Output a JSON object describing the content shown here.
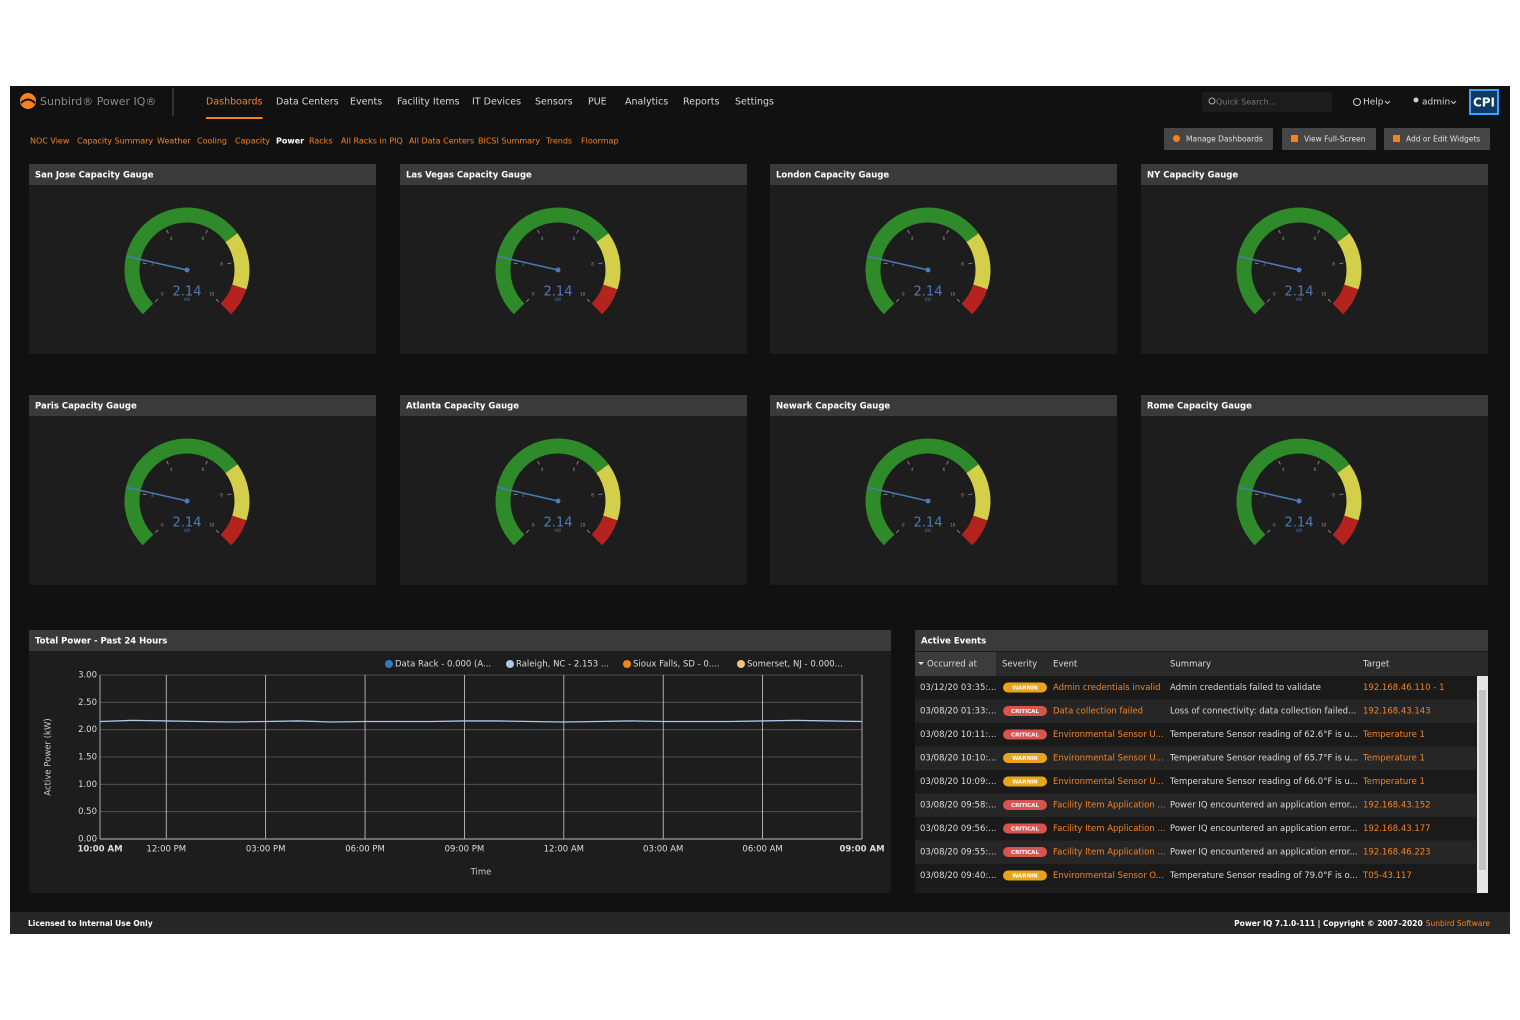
{
  "nav": {
    "logo": "Sunbird® Power IQ®",
    "items": [
      "Dashboards",
      "Data Centers",
      "Events",
      "Facility Items",
      "IT Devices",
      "Sensors",
      "PUE",
      "Analytics",
      "Reports",
      "Settings"
    ],
    "active": 0,
    "search_placeholder": "Quick Search...",
    "help": "Help",
    "user": "admin",
    "logo_right": "CPI"
  },
  "subnav": {
    "items": [
      "NOC View",
      "Capacity Summary",
      "Weather",
      "Cooling",
      "Capacity",
      "Power",
      "Racks",
      "All Racks in PIQ",
      "All Data Centers",
      "BICSI Summary",
      "Trends",
      "Floormap"
    ],
    "active": 5
  },
  "toolbar": {
    "buttons": [
      "Manage Dashboards",
      "View Full-Screen",
      "Add or Edit Widgets"
    ]
  },
  "gauge_scale": {
    "min": 0,
    "max": 10,
    "ticks": [
      0,
      2,
      4,
      6,
      8,
      10
    ],
    "bands": [
      {
        "from": 0,
        "to": 7,
        "color": "#2f8a2a"
      },
      {
        "from": 7,
        "to": 9,
        "color": "#d4cf4a"
      },
      {
        "from": 9,
        "to": 10,
        "color": "#b5231f"
      }
    ],
    "needle_color": "#4a7ab8"
  },
  "gauges": [
    {
      "title": "San Jose Capacity Gauge",
      "value": 2.14,
      "unit": "kW"
    },
    {
      "title": "Las Vegas Capacity Gauge",
      "value": 2.14,
      "unit": "kW"
    },
    {
      "title": "London Capacity Gauge",
      "value": 2.14,
      "unit": "kW"
    },
    {
      "title": "NY Capacity Gauge",
      "value": 2.14,
      "unit": "kW"
    },
    {
      "title": "Paris Capacity Gauge",
      "value": 2.14,
      "unit": "kW"
    },
    {
      "title": "Atlanta Capacity Gauge",
      "value": 2.14,
      "unit": "kW"
    },
    {
      "title": "Newark Capacity Gauge",
      "value": 2.14,
      "unit": "kW"
    },
    {
      "title": "Rome Capacity Gauge",
      "value": 2.14,
      "unit": "kW"
    }
  ],
  "chart_data": {
    "type": "line",
    "title": "Total Power - Past 24 Hours",
    "y_label": "Active Power (kW)",
    "x_label": "Time",
    "xlim": [
      0,
      23
    ],
    "ylim": [
      0,
      3
    ],
    "grid": true,
    "xticks": [
      {
        "value": 0,
        "label": "10:00 AM"
      },
      {
        "value": 2,
        "label": "12:00 PM"
      },
      {
        "value": 5,
        "label": "03:00 PM"
      },
      {
        "value": 8,
        "label": "06:00 PM"
      },
      {
        "value": 11,
        "label": "09:00 PM"
      },
      {
        "value": 14,
        "label": "12:00 AM"
      },
      {
        "value": 17,
        "label": "03:00 AM"
      },
      {
        "value": 20,
        "label": "06:00 AM"
      },
      {
        "value": 23,
        "label": "09:00 AM"
      }
    ],
    "yticks": [
      {
        "value": 0,
        "label": "0.00"
      },
      {
        "value": 0.5,
        "label": "0.50"
      },
      {
        "value": 1,
        "label": "1.00"
      },
      {
        "value": 1.5,
        "label": "1.50"
      },
      {
        "value": 2,
        "label": "2.00"
      },
      {
        "value": 2.5,
        "label": "2.50"
      },
      {
        "value": 3,
        "label": "3.00"
      }
    ],
    "series": [
      {
        "name": "Data Rack - 0.000 (A...",
        "color": "#2a7fc0"
      },
      {
        "name": "Raleigh, NC - 2.153 ...",
        "color": "#a9c9ea",
        "x": [
          0,
          1,
          2,
          3,
          4,
          5,
          6,
          7,
          8,
          9,
          10,
          11,
          12,
          13,
          14,
          15,
          16,
          17,
          18,
          19,
          20,
          21,
          22,
          23
        ],
        "values": [
          2.15,
          2.17,
          2.16,
          2.15,
          2.14,
          2.15,
          2.16,
          2.14,
          2.15,
          2.15,
          2.15,
          2.16,
          2.16,
          2.15,
          2.14,
          2.15,
          2.16,
          2.15,
          2.15,
          2.15,
          2.16,
          2.17,
          2.16,
          2.15
        ]
      },
      {
        "name": "Sioux Falls, SD - 0....",
        "color": "#f58220"
      },
      {
        "name": "Somerset, NJ - 0.000...",
        "color": "#f5c07a"
      }
    ]
  },
  "events": {
    "title": "Active Events",
    "columns": [
      "Occurred at",
      "Severity",
      "Event",
      "Summary",
      "Target"
    ],
    "sort_column": 0,
    "rows": [
      {
        "occurred": "03/12/20 03:35:...",
        "severity": "WARNIN",
        "severity_color": "#e8a51c",
        "event": "Admin credentials invalid",
        "summary": "Admin credentials failed to validate",
        "target": "192.168.46.110 - 1"
      },
      {
        "occurred": "03/08/20 01:33:...",
        "severity": "CRITICAL",
        "severity_color": "#d9534f",
        "event": "Data collection failed",
        "summary": "Loss of connectivity: data collection failed...",
        "target": "192.168.43.143"
      },
      {
        "occurred": "03/08/20 10:11:...",
        "severity": "CRITICAL",
        "severity_color": "#d9534f",
        "event": "Environmental Sensor U...",
        "summary": "Temperature Sensor reading of 62.6°F is u...",
        "target": "Temperature 1"
      },
      {
        "occurred": "03/08/20 10:10:...",
        "severity": "WARNIN",
        "severity_color": "#e8a51c",
        "event": "Environmental Sensor U...",
        "summary": "Temperature Sensor reading of 65.7°F is u...",
        "target": "Temperature 1"
      },
      {
        "occurred": "03/08/20 10:09:...",
        "severity": "WARNIN",
        "severity_color": "#e8a51c",
        "event": "Environmental Sensor U...",
        "summary": "Temperature Sensor reading of 66.0°F is u...",
        "target": "Temperature 1"
      },
      {
        "occurred": "03/08/20 09:58:...",
        "severity": "CRITICAL",
        "severity_color": "#d9534f",
        "event": "Facility Item Application ...",
        "summary": "Power IQ encountered an application error...",
        "target": "192.168.43.152"
      },
      {
        "occurred": "03/08/20 09:56:...",
        "severity": "CRITICAL",
        "severity_color": "#d9534f",
        "event": "Facility Item Application ...",
        "summary": "Power IQ encountered an application error...",
        "target": "192.168.43.177"
      },
      {
        "occurred": "03/08/20 09:55:...",
        "severity": "CRITICAL",
        "severity_color": "#d9534f",
        "event": "Facility Item Application ...",
        "summary": "Power IQ encountered an application error...",
        "target": "192.168.46.223"
      },
      {
        "occurred": "03/08/20 09:40:...",
        "severity": "WARNIN",
        "severity_color": "#e8a51c",
        "event": "Environmental Sensor O...",
        "summary": "Temperature Sensor reading of 79.0°F is o...",
        "target": "T05-43.117"
      }
    ]
  },
  "footer": {
    "license": "Licensed to Internal Use Only",
    "version": "Power IQ 7.1.0-111 | Copyright © 2007–2020",
    "company": "Sunbird Software"
  }
}
